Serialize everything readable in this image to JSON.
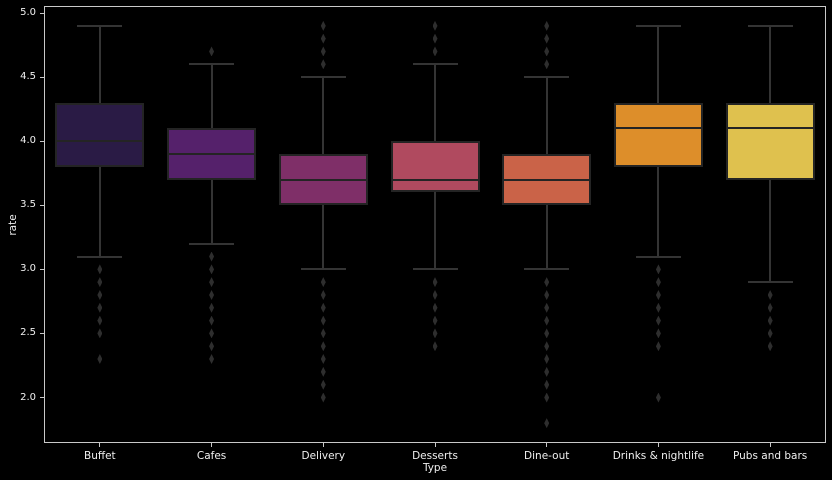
{
  "chart_data": {
    "type": "box",
    "title": "",
    "xlabel": "Type",
    "ylabel": "rate",
    "ylim": [
      1.645,
      5.055
    ],
    "yticks": [
      "2.0",
      "2.5",
      "3.0",
      "3.5",
      "4.0",
      "4.5",
      "5.0"
    ],
    "categories": [
      "Buffet",
      "Cafes",
      "Delivery",
      "Desserts",
      "Dine-out",
      "Drinks & nightlife",
      "Pubs and bars"
    ],
    "series": [
      {
        "name": "Buffet",
        "color": "#2a1b45",
        "whisker_low": 3.1,
        "q1": 3.8,
        "median": 4.0,
        "q3": 4.3,
        "whisker_high": 4.9,
        "outliers": [
          3.0,
          2.9,
          2.8,
          2.7,
          2.6,
          2.5,
          2.3
        ]
      },
      {
        "name": "Cafes",
        "color": "#55216b",
        "whisker_low": 3.2,
        "q1": 3.7,
        "median": 3.9,
        "q3": 4.1,
        "whisker_high": 4.6,
        "outliers": [
          4.7,
          3.1,
          3.0,
          2.9,
          2.8,
          2.7,
          2.6,
          2.5,
          2.4,
          2.3
        ]
      },
      {
        "name": "Delivery",
        "color": "#7f2f68",
        "whisker_low": 3.0,
        "q1": 3.5,
        "median": 3.7,
        "q3": 3.9,
        "whisker_high": 4.5,
        "outliers": [
          4.9,
          4.8,
          4.7,
          4.6,
          2.9,
          2.8,
          2.7,
          2.6,
          2.5,
          2.4,
          2.3,
          2.2,
          2.1,
          2.0
        ]
      },
      {
        "name": "Desserts",
        "color": "#b04a5f",
        "whisker_low": 3.0,
        "q1": 3.6,
        "median": 3.7,
        "q3": 4.0,
        "whisker_high": 4.6,
        "outliers": [
          4.9,
          4.8,
          4.7,
          2.9,
          2.8,
          2.7,
          2.6,
          2.5,
          2.4
        ]
      },
      {
        "name": "Dine-out",
        "color": "#ca6348",
        "whisker_low": 3.0,
        "q1": 3.5,
        "median": 3.7,
        "q3": 3.9,
        "whisker_high": 4.5,
        "outliers": [
          4.9,
          4.8,
          4.7,
          4.6,
          2.9,
          2.8,
          2.7,
          2.6,
          2.5,
          2.4,
          2.3,
          2.2,
          2.1,
          2.0,
          1.8
        ]
      },
      {
        "name": "Drinks & nightlife",
        "color": "#dd8e2a",
        "whisker_low": 3.1,
        "q1": 3.8,
        "median": 4.1,
        "q3": 4.3,
        "whisker_high": 4.9,
        "outliers": [
          3.0,
          2.9,
          2.8,
          2.7,
          2.6,
          2.5,
          2.4,
          2.0
        ]
      },
      {
        "name": "Pubs and bars",
        "color": "#dfc14e",
        "whisker_low": 2.9,
        "q1": 3.7,
        "median": 4.1,
        "q3": 4.3,
        "whisker_high": 4.9,
        "outliers": [
          2.8,
          2.7,
          2.6,
          2.5,
          2.4
        ]
      }
    ],
    "style": {
      "background": "#000000",
      "text_color": "#f0f0f0",
      "spine_color": "#c9c9c9",
      "line_color": "#343434",
      "box_edge_color": "#242424",
      "flier_color": "#2e2e2e",
      "grid": false,
      "legend": false
    }
  }
}
